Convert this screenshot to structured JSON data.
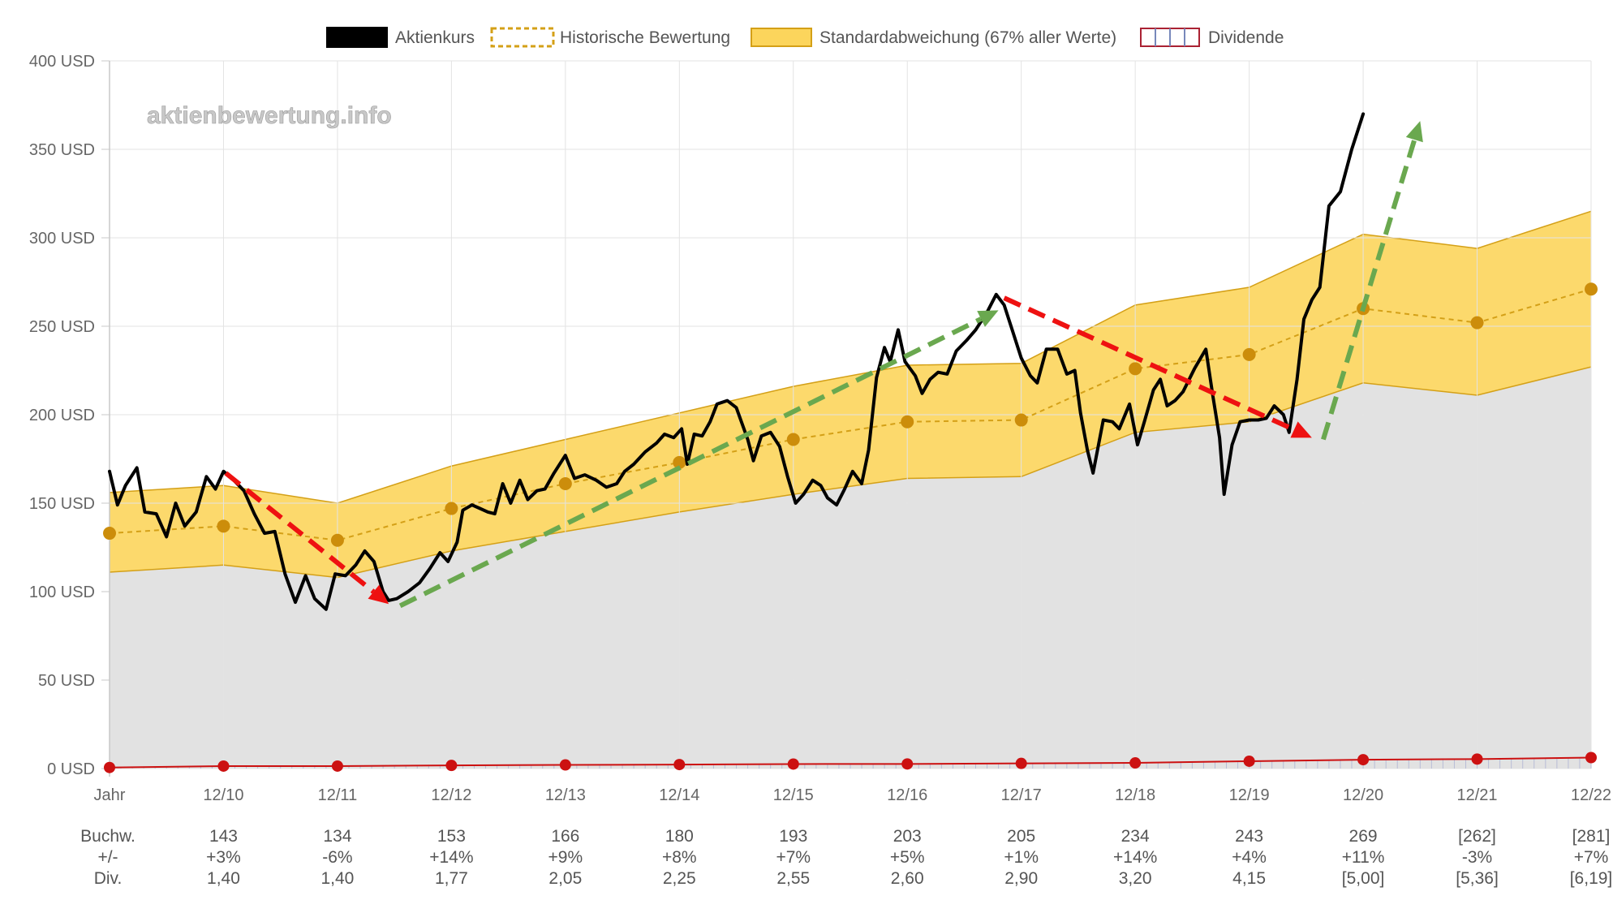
{
  "legend": {
    "price_label": "Aktienkurs",
    "historic_label": "Historische Bewertung",
    "stddev_label": "Standardabweichung (67% aller Werte)",
    "dividend_label": "Dividende"
  },
  "watermark": "aktienbewertung.info",
  "row_labels": {
    "bookvalue": "Buchw.",
    "change": "+/-",
    "dividend": "Div."
  },
  "colors": {
    "price": "#000000",
    "historic": "#d4a017",
    "historic_dot": "#cc8d0b",
    "band_fill": "#fcd55c",
    "band_stroke": "#d4a017",
    "lower_fill": "#e2e2e2",
    "dividend": "#cc1111",
    "grid": "#e3e3e3",
    "arrow_up": "#6aa84f",
    "arrow_down": "#ee1111"
  },
  "chart_data": {
    "type": "line",
    "title": "",
    "x_labels": [
      "Jahr",
      "12/10",
      "12/11",
      "12/12",
      "12/13",
      "12/14",
      "12/15",
      "12/16",
      "12/17",
      "12/18",
      "12/19",
      "12/20",
      "12/21",
      "12/22"
    ],
    "y_axis": {
      "min": 0,
      "max": 400,
      "ticks": [
        {
          "value": 0,
          "label": "0 USD"
        },
        {
          "value": 50,
          "label": "50 USD"
        },
        {
          "value": 100,
          "label": "100 USD"
        },
        {
          "value": 150,
          "label": "150 USD"
        },
        {
          "value": 200,
          "label": "200 USD"
        },
        {
          "value": 250,
          "label": "250 USD"
        },
        {
          "value": 300,
          "label": "300 USD"
        },
        {
          "value": 350,
          "label": "350 USD"
        },
        {
          "value": 400,
          "label": "400 USD"
        }
      ]
    },
    "grid": true,
    "legend_position": "top",
    "series": [
      {
        "name": "Historische Bewertung",
        "x": [
          0,
          1,
          2,
          3,
          4,
          5,
          6,
          7,
          8,
          9,
          10,
          11,
          12,
          13
        ],
        "values": [
          133,
          137,
          129,
          147,
          161,
          173,
          186,
          196,
          197,
          226,
          234,
          260,
          252,
          271
        ]
      },
      {
        "name": "Standardabweichung (67% aller Werte)",
        "x": [
          0,
          1,
          2,
          3,
          4,
          5,
          6,
          7,
          8,
          9,
          10,
          11,
          12,
          13
        ],
        "upper": [
          156,
          160,
          150,
          171,
          186,
          201,
          216,
          228,
          229,
          262,
          272,
          302,
          294,
          315
        ],
        "lower": [
          111,
          115,
          108,
          123,
          134,
          145,
          155,
          164,
          165,
          190,
          196,
          218,
          211,
          227
        ]
      },
      {
        "name": "Dividende",
        "x": [
          0,
          1,
          2,
          3,
          4,
          5,
          6,
          7,
          8,
          9,
          10,
          11,
          12,
          13
        ],
        "values": [
          0.6,
          1.4,
          1.4,
          1.77,
          2.05,
          2.25,
          2.55,
          2.6,
          2.9,
          3.2,
          4.15,
          5.0,
          5.36,
          6.19
        ]
      },
      {
        "name": "Aktienkurs",
        "points": [
          [
            0.0,
            168
          ],
          [
            0.07,
            149
          ],
          [
            0.14,
            160
          ],
          [
            0.24,
            170
          ],
          [
            0.31,
            145
          ],
          [
            0.41,
            144
          ],
          [
            0.5,
            131
          ],
          [
            0.58,
            150
          ],
          [
            0.66,
            137
          ],
          [
            0.76,
            145
          ],
          [
            0.85,
            165
          ],
          [
            0.93,
            158
          ],
          [
            1.0,
            168
          ],
          [
            1.09,
            163
          ],
          [
            1.18,
            157
          ],
          [
            1.27,
            144
          ],
          [
            1.36,
            133
          ],
          [
            1.45,
            134
          ],
          [
            1.54,
            110
          ],
          [
            1.63,
            94
          ],
          [
            1.72,
            109
          ],
          [
            1.8,
            96
          ],
          [
            1.9,
            90
          ],
          [
            1.98,
            110
          ],
          [
            2.07,
            109
          ],
          [
            2.16,
            115
          ],
          [
            2.24,
            123
          ],
          [
            2.32,
            117
          ],
          [
            2.4,
            100
          ],
          [
            2.45,
            95
          ],
          [
            2.52,
            96
          ],
          [
            2.62,
            100
          ],
          [
            2.72,
            105
          ],
          [
            2.81,
            113
          ],
          [
            2.9,
            122
          ],
          [
            2.97,
            117
          ],
          [
            3.05,
            128
          ],
          [
            3.1,
            146
          ],
          [
            3.18,
            149
          ],
          [
            3.25,
            147
          ],
          [
            3.32,
            145
          ],
          [
            3.38,
            144
          ],
          [
            3.45,
            161
          ],
          [
            3.52,
            150
          ],
          [
            3.6,
            163
          ],
          [
            3.67,
            152
          ],
          [
            3.75,
            157
          ],
          [
            3.82,
            158
          ],
          [
            3.9,
            167
          ],
          [
            4.0,
            177
          ],
          [
            4.08,
            164
          ],
          [
            4.17,
            166
          ],
          [
            4.27,
            163
          ],
          [
            4.36,
            159
          ],
          [
            4.45,
            161
          ],
          [
            4.52,
            168
          ],
          [
            4.6,
            172
          ],
          [
            4.7,
            179
          ],
          [
            4.8,
            184
          ],
          [
            4.87,
            189
          ],
          [
            4.95,
            187
          ],
          [
            5.02,
            192
          ],
          [
            5.07,
            172
          ],
          [
            5.13,
            189
          ],
          [
            5.2,
            188
          ],
          [
            5.27,
            196
          ],
          [
            5.33,
            206
          ],
          [
            5.42,
            208
          ],
          [
            5.5,
            204
          ],
          [
            5.6,
            186
          ],
          [
            5.65,
            174
          ],
          [
            5.72,
            188
          ],
          [
            5.8,
            190
          ],
          [
            5.88,
            182
          ],
          [
            5.95,
            165
          ],
          [
            6.02,
            150
          ],
          [
            6.09,
            155
          ],
          [
            6.17,
            163
          ],
          [
            6.24,
            160
          ],
          [
            6.3,
            153
          ],
          [
            6.38,
            149
          ],
          [
            6.45,
            158
          ],
          [
            6.52,
            168
          ],
          [
            6.6,
            161
          ],
          [
            6.66,
            180
          ],
          [
            6.73,
            221
          ],
          [
            6.8,
            238
          ],
          [
            6.85,
            230
          ],
          [
            6.92,
            248
          ],
          [
            6.98,
            230
          ],
          [
            7.07,
            222
          ],
          [
            7.13,
            212
          ],
          [
            7.2,
            220
          ],
          [
            7.27,
            224
          ],
          [
            7.35,
            223
          ],
          [
            7.43,
            236
          ],
          [
            7.52,
            242
          ],
          [
            7.6,
            248
          ],
          [
            7.7,
            258
          ],
          [
            7.78,
            268
          ],
          [
            7.85,
            262
          ],
          [
            7.92,
            248
          ],
          [
            8.0,
            232
          ],
          [
            8.08,
            222
          ],
          [
            8.14,
            218
          ],
          [
            8.22,
            237
          ],
          [
            8.32,
            237
          ],
          [
            8.4,
            223
          ],
          [
            8.47,
            225
          ],
          [
            8.52,
            201
          ],
          [
            8.58,
            180
          ],
          [
            8.63,
            167
          ],
          [
            8.72,
            197
          ],
          [
            8.8,
            196
          ],
          [
            8.86,
            192
          ],
          [
            8.95,
            206
          ],
          [
            9.02,
            183
          ],
          [
            9.08,
            196
          ],
          [
            9.16,
            214
          ],
          [
            9.22,
            220
          ],
          [
            9.28,
            205
          ],
          [
            9.35,
            208
          ],
          [
            9.42,
            213
          ],
          [
            9.52,
            226
          ],
          [
            9.62,
            237
          ],
          [
            9.68,
            211
          ],
          [
            9.74,
            187
          ],
          [
            9.78,
            155
          ],
          [
            9.85,
            183
          ],
          [
            9.92,
            196
          ],
          [
            10.0,
            197
          ],
          [
            10.08,
            197
          ],
          [
            10.15,
            198
          ],
          [
            10.22,
            205
          ],
          [
            10.3,
            200
          ],
          [
            10.35,
            190
          ],
          [
            10.42,
            220
          ],
          [
            10.48,
            254
          ],
          [
            10.55,
            265
          ],
          [
            10.62,
            272
          ],
          [
            10.7,
            318
          ],
          [
            10.8,
            326
          ],
          [
            10.9,
            350
          ],
          [
            11.0,
            370
          ]
        ]
      }
    ],
    "arrows": [
      {
        "from": [
          1.02,
          167
        ],
        "to": [
          2.45,
          93
        ],
        "color": "red"
      },
      {
        "from": [
          2.55,
          92
        ],
        "to": [
          7.8,
          259
        ],
        "color": "green"
      },
      {
        "from": [
          7.85,
          266
        ],
        "to": [
          10.55,
          187
        ],
        "color": "red"
      },
      {
        "from": [
          10.65,
          186
        ],
        "to": [
          11.5,
          366
        ],
        "color": "green"
      }
    ]
  },
  "table": {
    "bookvalue": [
      "143",
      "134",
      "153",
      "166",
      "180",
      "193",
      "203",
      "205",
      "234",
      "243",
      "269",
      "[262]",
      "[281]"
    ],
    "change": [
      "+3%",
      "-6%",
      "+14%",
      "+9%",
      "+8%",
      "+7%",
      "+5%",
      "+1%",
      "+14%",
      "+4%",
      "+11%",
      "-3%",
      "+7%"
    ],
    "dividend": [
      "1,40",
      "1,40",
      "1,77",
      "2,05",
      "2,25",
      "2,55",
      "2,60",
      "2,90",
      "3,20",
      "4,15",
      "[5,00]",
      "[5,36]",
      "[6,19]"
    ]
  }
}
